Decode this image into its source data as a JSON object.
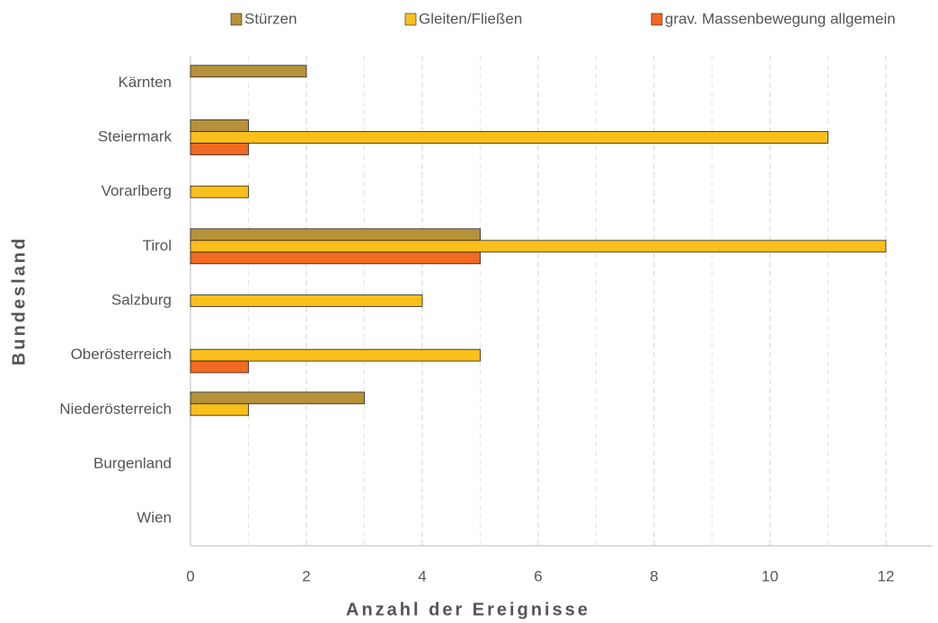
{
  "chart_data": {
    "type": "barh",
    "categories": [
      "Kärnten",
      "Steiermark",
      "Vorarlberg",
      "Tirol",
      "Salzburg",
      "Oberösterreich",
      "Niederösterreich",
      "Burgenland",
      "Wien"
    ],
    "series": [
      {
        "name": "Stürzen",
        "color": "#b8923a",
        "values": [
          2,
          1,
          0,
          5,
          0,
          0,
          3,
          0,
          0
        ]
      },
      {
        "name": "Gleiten/Fließen",
        "color": "#fbbf1b",
        "values": [
          0,
          11,
          1,
          12,
          4,
          5,
          1,
          0,
          0
        ]
      },
      {
        "name": "grav. Massenbewegung allgemein",
        "color": "#f26a21",
        "values": [
          0,
          1,
          0,
          5,
          0,
          1,
          0,
          0,
          0
        ]
      }
    ],
    "xlabel": "Anzahl der Ereignisse",
    "ylabel": "Bundesland",
    "xlim": [
      0,
      12.8
    ],
    "xticks": [
      0,
      2,
      4,
      6,
      8,
      10,
      12
    ],
    "xminor_ticks": [
      1,
      3,
      5,
      7,
      9,
      11
    ],
    "grid": true,
    "legend": "top"
  }
}
